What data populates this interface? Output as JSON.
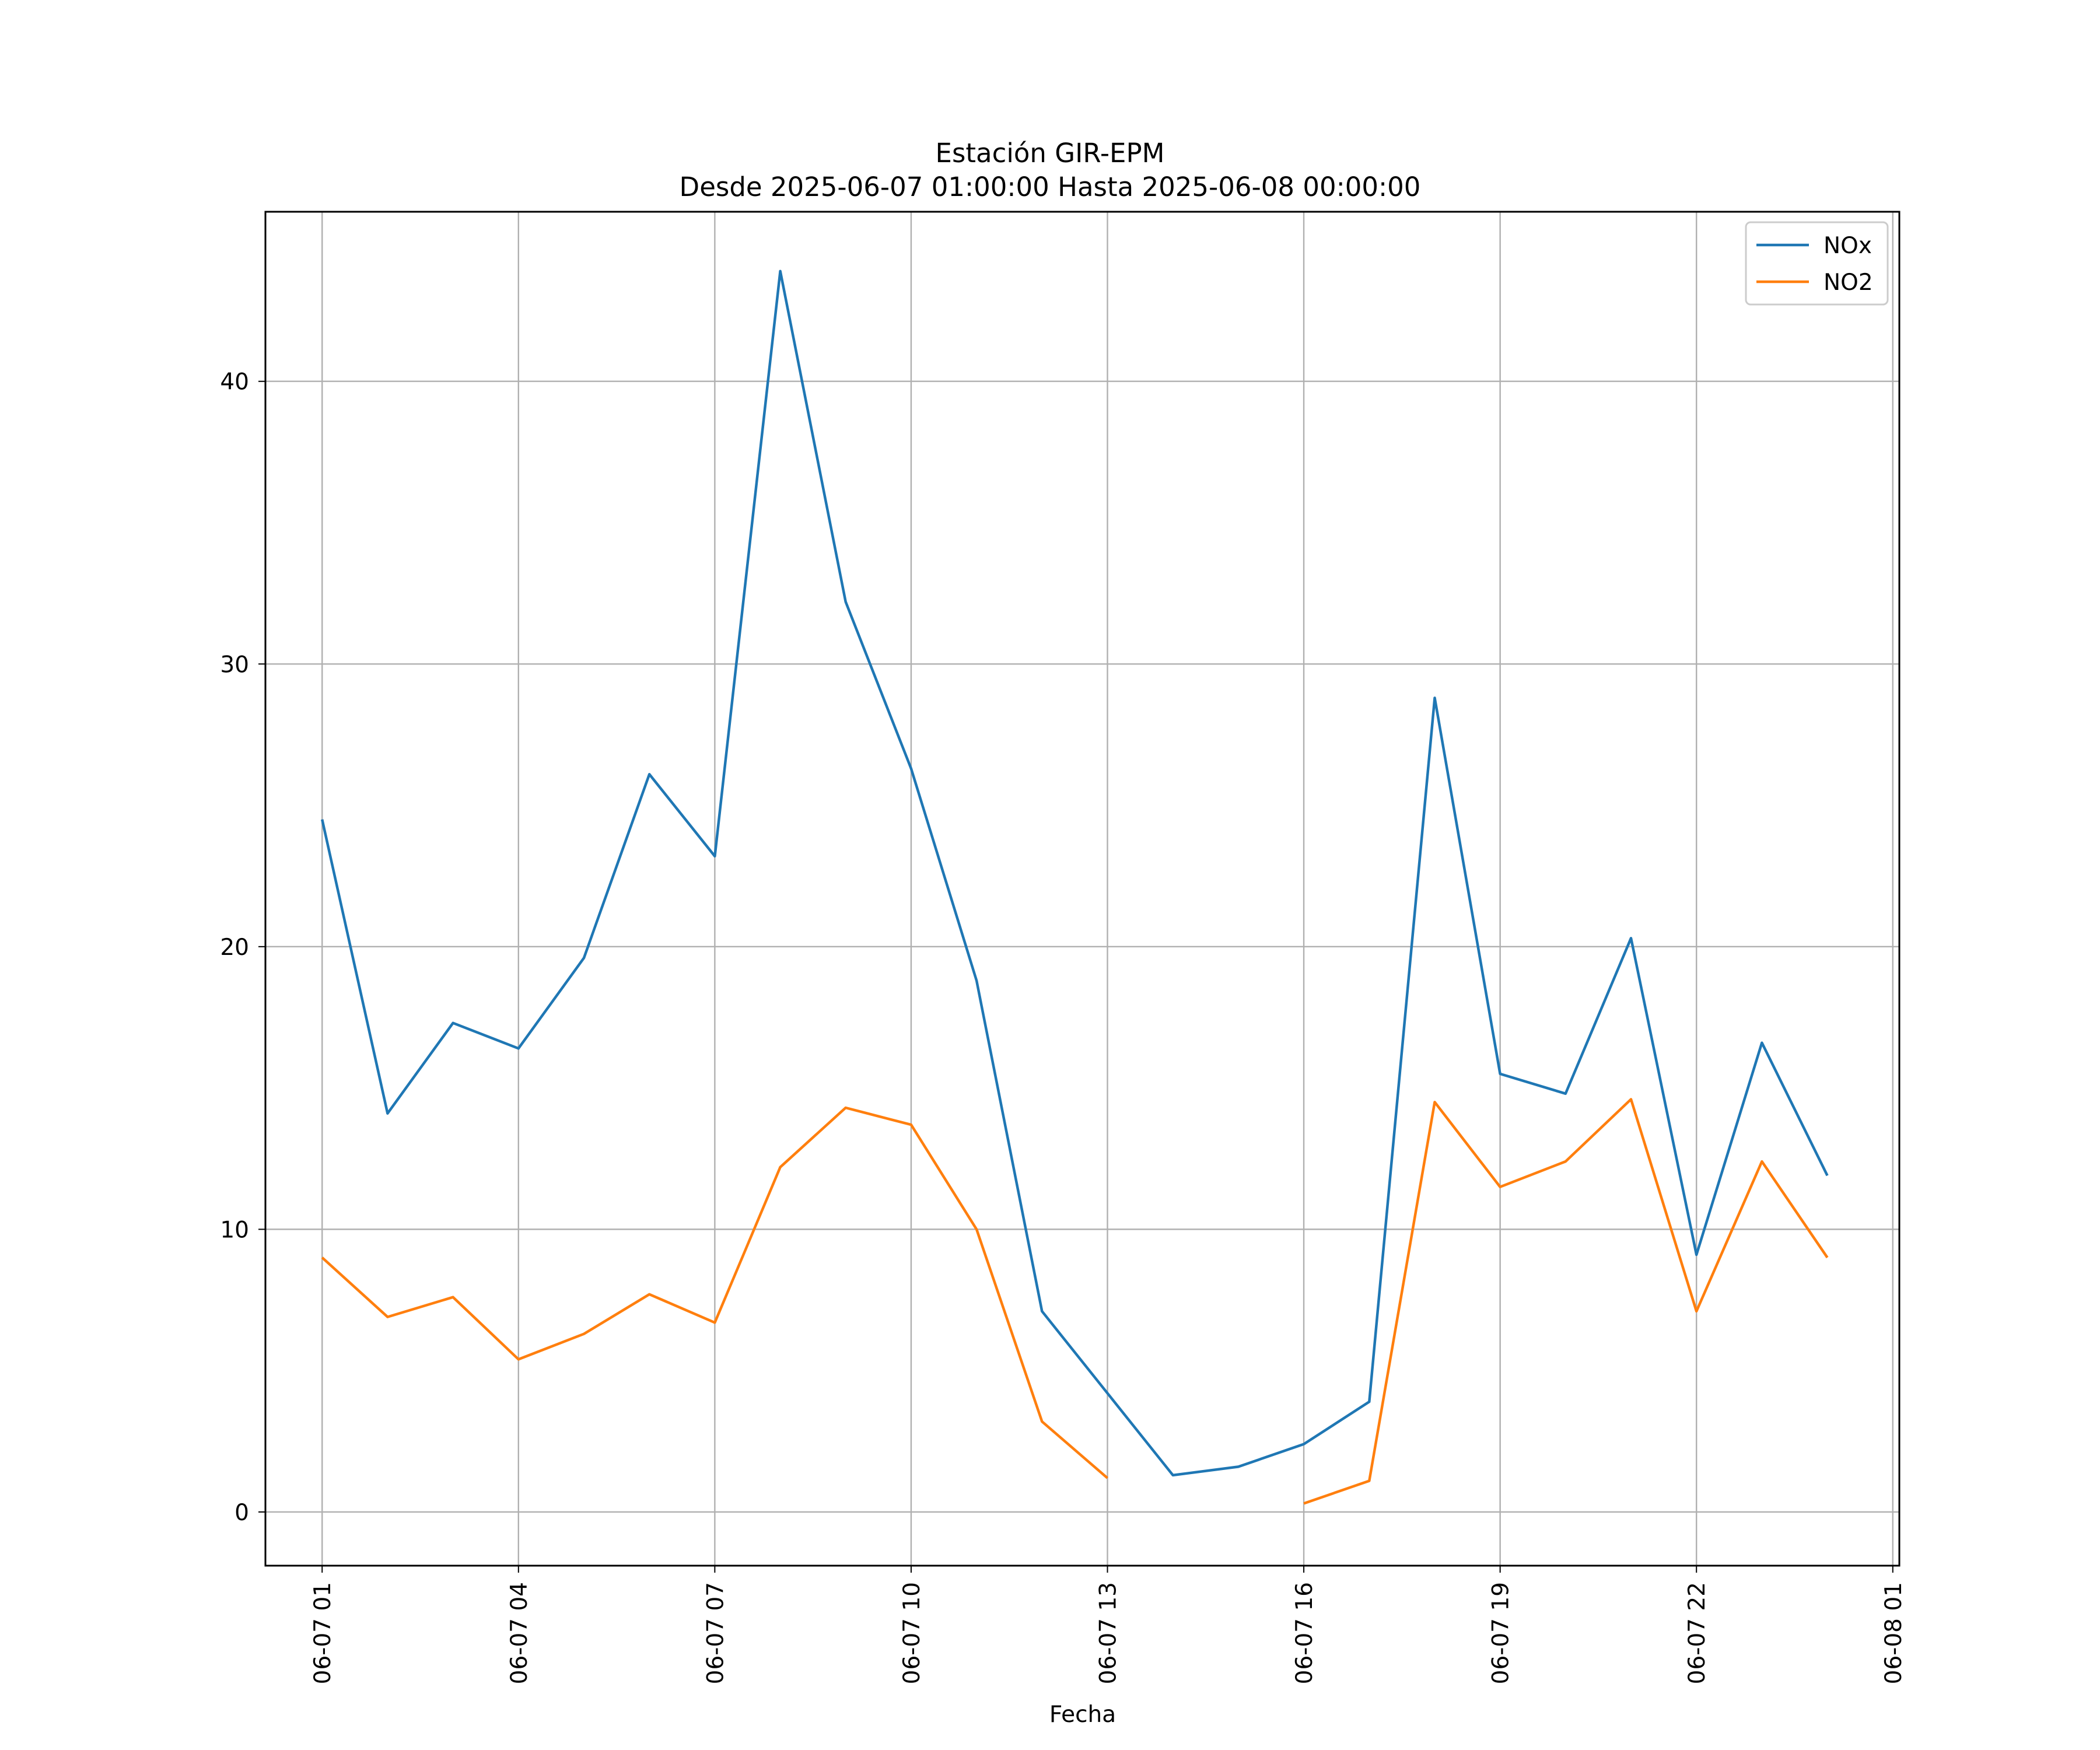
{
  "chart_data": {
    "type": "line",
    "title": "Estación GIR-EPM",
    "subtitle": "Desde 2025-06-07 01:00:00 Hasta 2025-06-08 00:00:00",
    "xlabel": "Fecha",
    "ylabel": "",
    "x": [
      "2025-06-07 01:00",
      "2025-06-07 02:00",
      "2025-06-07 03:00",
      "2025-06-07 04:00",
      "2025-06-07 05:00",
      "2025-06-07 06:00",
      "2025-06-07 07:00",
      "2025-06-07 08:00",
      "2025-06-07 09:00",
      "2025-06-07 10:00",
      "2025-06-07 11:00",
      "2025-06-07 12:00",
      "2025-06-07 13:00",
      "2025-06-07 14:00",
      "2025-06-07 15:00",
      "2025-06-07 16:00",
      "2025-06-07 17:00",
      "2025-06-07 18:00",
      "2025-06-07 19:00",
      "2025-06-07 20:00",
      "2025-06-07 21:00",
      "2025-06-07 22:00",
      "2025-06-07 23:00",
      "2025-06-08 00:00"
    ],
    "series": [
      {
        "name": "NOx",
        "color": "#1f77b4",
        "values": [
          24.5,
          14.1,
          17.3,
          16.4,
          19.6,
          26.1,
          23.2,
          43.9,
          32.2,
          26.3,
          18.8,
          7.1,
          4.2,
          1.3,
          1.6,
          2.4,
          3.9,
          28.8,
          15.5,
          14.8,
          20.3,
          9.1,
          16.6,
          11.9
        ]
      },
      {
        "name": "NO2",
        "color": "#ff7f0e",
        "values": [
          9.0,
          6.9,
          7.6,
          5.4,
          6.3,
          7.7,
          6.7,
          12.2,
          14.3,
          13.7,
          10.0,
          3.2,
          1.2,
          null,
          null,
          0.3,
          1.1,
          14.5,
          11.5,
          12.4,
          14.6,
          7.1,
          12.4,
          9.0
        ]
      }
    ],
    "yticks": [
      "0",
      "10",
      "20",
      "30",
      "40"
    ],
    "xticks": [
      "06-07 01",
      "06-07 04",
      "06-07 07",
      "06-07 10",
      "06-07 13",
      "06-07 16",
      "06-07 19",
      "06-07 22",
      "06-08 01"
    ],
    "ylim": [
      -1.9,
      46.0
    ],
    "xlim": [
      "2025-06-07 00:08",
      "2025-06-08 01:06"
    ],
    "grid": true,
    "legend": "top-right"
  }
}
